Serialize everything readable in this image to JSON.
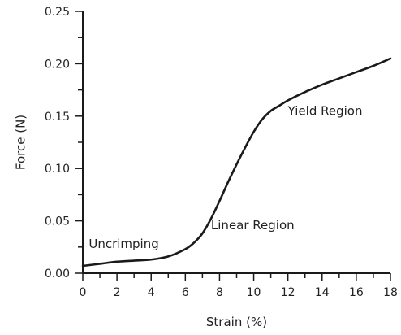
{
  "chart_data": {
    "type": "line",
    "xlabel": "Strain (%)",
    "ylabel": "Force (N)",
    "xlim": [
      0,
      18
    ],
    "ylim": [
      0,
      0.25
    ],
    "x_ticks": [
      0,
      2,
      4,
      6,
      8,
      10,
      12,
      14,
      16,
      18
    ],
    "x_tick_labels": [
      "0",
      "2",
      "4",
      "6",
      "8",
      "10",
      "12",
      "14",
      "16",
      "18"
    ],
    "x_minor_step": 1,
    "y_ticks": [
      0,
      0.05,
      0.1,
      0.15,
      0.2,
      0.25
    ],
    "y_tick_labels": [
      "0.00",
      "0.05",
      "0.10",
      "0.15",
      "0.20",
      "0.25"
    ],
    "y_minor_step": 0.025,
    "grid": false,
    "series": [
      {
        "x": [
          0,
          1,
          2,
          3,
          4,
          5,
          6,
          6.5,
          7,
          7.5,
          8,
          8.5,
          9,
          9.5,
          10,
          10.5,
          11,
          11.5,
          12,
          13,
          14,
          15,
          16,
          17,
          18
        ],
        "y": [
          0.007,
          0.009,
          0.011,
          0.012,
          0.013,
          0.016,
          0.023,
          0.029,
          0.038,
          0.052,
          0.069,
          0.087,
          0.104,
          0.12,
          0.135,
          0.147,
          0.155,
          0.16,
          0.165,
          0.173,
          0.18,
          0.186,
          0.192,
          0.198,
          0.205
        ],
        "color": "#1a1a1a"
      }
    ],
    "annotations": [
      {
        "text": "Uncrimping",
        "x": 0.35,
        "y": 0.024
      },
      {
        "text": "Linear Region",
        "x": 7.5,
        "y": 0.042
      },
      {
        "text": "Yield Region",
        "x": 12.0,
        "y": 0.151
      }
    ]
  }
}
